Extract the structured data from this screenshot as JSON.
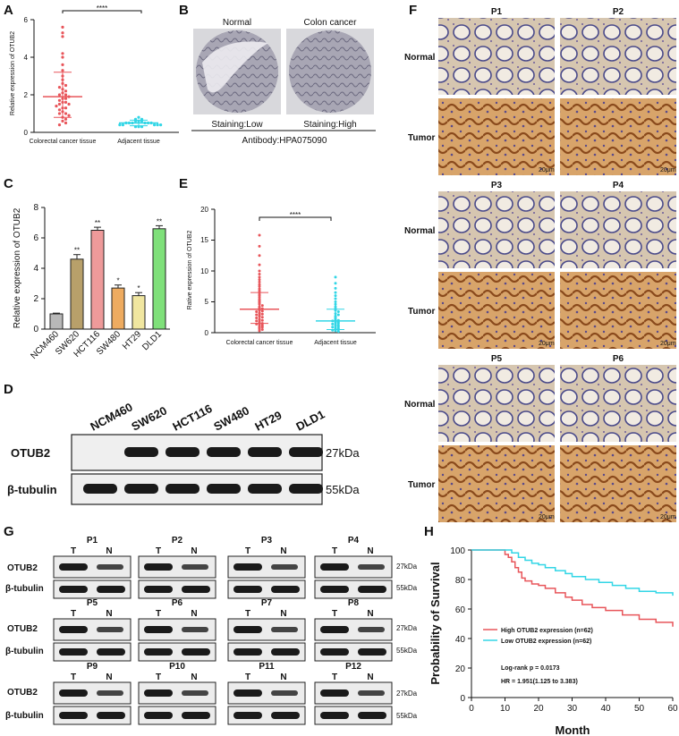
{
  "colors": {
    "red_series": "#e8555a",
    "cyan_series": "#32d6e6",
    "bar_ncm460": "#b8b8b8",
    "bar_sw620": "#b8a06a",
    "bar_hct116": "#ee9a9a",
    "bar_sw480": "#eeab60",
    "bar_ht29": "#f0e6a0",
    "bar_dld1": "#7fe07a",
    "tissue_normal": "#c9b8a3",
    "tissue_tumor": "#b88250"
  },
  "panels": {
    "A": {
      "label": "A",
      "ylabel": "Relative expression of OTUB2",
      "sig": "****",
      "yticks": [
        "0",
        "2",
        "4",
        "6"
      ],
      "xcats": [
        "Colorectal cancer tissue",
        "Adjacent tissue"
      ]
    },
    "B": {
      "label": "B",
      "normal_title": "Normal",
      "cancer_title": "Colon cancer",
      "normal_staining": "Staining:Low",
      "cancer_staining": "Staining:High",
      "antibody": "Antibody:HPA075090"
    },
    "C": {
      "label": "C",
      "ylabel": "Relative expression of OTUB2",
      "yticks": [
        "0",
        "2",
        "4",
        "6",
        "8"
      ],
      "sig_marks": [
        "",
        "**",
        "**",
        "*",
        "*",
        "**"
      ]
    },
    "D": {
      "label": "D",
      "lanes": [
        "NCM460",
        "SW620",
        "HCT116",
        "SW480",
        "HT29",
        "DLD1"
      ],
      "rows": [
        "OTUB2",
        "β-tubulin"
      ],
      "sizes": [
        "27kDa",
        "55kDa"
      ]
    },
    "E": {
      "label": "E",
      "ylabel": "Rative expression of OTUB2",
      "sig": "****",
      "yticks": [
        "0",
        "5",
        "10",
        "15",
        "20"
      ],
      "xcats": [
        "Colorectal cancer tissue",
        "Adjacent tissue"
      ]
    },
    "F": {
      "label": "F",
      "patients": [
        "P1",
        "P2",
        "P3",
        "P4",
        "P5",
        "P6"
      ],
      "row_labels": [
        "Normal",
        "Tumor"
      ],
      "scale": "20μm"
    },
    "G": {
      "label": "G",
      "patients": [
        "P1",
        "P2",
        "P3",
        "P4",
        "P5",
        "P6",
        "P7",
        "P8",
        "P9",
        "P10",
        "P11",
        "P12"
      ],
      "lane_t": "T",
      "lane_n": "N",
      "rows": [
        "OTUB2",
        "β-tubulin"
      ],
      "sizes": [
        "27kDa",
        "55kDa"
      ]
    },
    "H": {
      "label": "H",
      "ylabel": "Probability of Survival",
      "xlabel": "Month",
      "yticks": [
        "0",
        "20",
        "40",
        "60",
        "80",
        "100"
      ],
      "xticks": [
        "0",
        "10",
        "20",
        "30",
        "40",
        "50",
        "60"
      ],
      "legend_high": "High OTUB2 expression (n=62)",
      "legend_low": "Low OTUB2 expression (n=62)",
      "logrank": "Log-rank p = 0.0173",
      "hr": "HR = 1.951(1.125 to 3.383)"
    }
  },
  "chart_data": [
    {
      "panel": "A",
      "type": "scatter",
      "ylabel": "Relative expression of OTUB2",
      "ylim": [
        0,
        6
      ],
      "categories": [
        "Colorectal cancer tissue",
        "Adjacent tissue"
      ],
      "series": [
        {
          "category": "Colorectal cancer tissue",
          "mean": 1.9,
          "sd_upper": 3.2,
          "sd_lower": 0.8,
          "values": [
            5.6,
            5.3,
            5.1,
            4.2,
            4.0,
            3.6,
            3.3,
            3.0,
            2.8,
            2.6,
            2.5,
            2.4,
            2.3,
            2.2,
            2.1,
            2.0,
            2.0,
            1.9,
            1.8,
            1.8,
            1.7,
            1.6,
            1.6,
            1.5,
            1.5,
            1.4,
            1.3,
            1.3,
            1.2,
            1.1,
            1.0,
            1.0,
            0.9,
            0.8,
            0.7,
            0.6,
            0.5,
            0.4
          ]
        },
        {
          "category": "Adjacent tissue",
          "mean": 0.5,
          "sd_upper": 0.65,
          "sd_lower": 0.35,
          "values": [
            0.8,
            0.7,
            0.7,
            0.6,
            0.6,
            0.6,
            0.5,
            0.5,
            0.5,
            0.5,
            0.5,
            0.5,
            0.4,
            0.4,
            0.4,
            0.4,
            0.4,
            0.3,
            0.3,
            0.3
          ]
        }
      ]
    },
    {
      "panel": "C",
      "type": "bar",
      "ylabel": "Relative expression of OTUB2",
      "ylim": [
        0,
        8
      ],
      "categories": [
        "NCM460",
        "SW620",
        "HCT116",
        "SW480",
        "HT29",
        "DLD1"
      ],
      "values": [
        1.0,
        4.6,
        6.5,
        2.7,
        2.2,
        6.6
      ],
      "errors": [
        0.05,
        0.3,
        0.2,
        0.2,
        0.2,
        0.2
      ]
    },
    {
      "panel": "E",
      "type": "scatter",
      "ylabel": "Rative expression of OTUB2",
      "ylim": [
        0,
        20
      ],
      "categories": [
        "Colorectal cancer tissue",
        "Adjacent tissue"
      ],
      "series": [
        {
          "category": "Colorectal cancer tissue",
          "mean": 3.8,
          "sd_upper": 6.5,
          "sd_lower": 1.5,
          "values": [
            15.8,
            14.0,
            12.5,
            11.0,
            10.0,
            9.5,
            9.0,
            8.6,
            8.2,
            7.8,
            7.5,
            7.1,
            6.8,
            6.5,
            6.2,
            6.0,
            5.7,
            5.4,
            5.2,
            5.0,
            4.8,
            4.6,
            4.4,
            4.2,
            4.0,
            3.9,
            3.8,
            3.6,
            3.5,
            3.4,
            3.2,
            3.1,
            3.0,
            2.9,
            2.8,
            2.6,
            2.5,
            2.4,
            2.2,
            2.1,
            2.0,
            1.9,
            1.8,
            1.6,
            1.5,
            1.4,
            1.3,
            1.2,
            1.0,
            0.9,
            0.8,
            0.6,
            0.5,
            0.3
          ]
        },
        {
          "category": "Adjacent tissue",
          "mean": 1.9,
          "sd_upper": 3.8,
          "sd_lower": 0.5,
          "values": [
            9.0,
            8.0,
            7.2,
            6.5,
            6.0,
            5.5,
            5.0,
            4.6,
            4.2,
            3.9,
            3.6,
            3.4,
            3.1,
            2.9,
            2.7,
            2.5,
            2.3,
            2.1,
            2.0,
            1.9,
            1.8,
            1.7,
            1.6,
            1.5,
            1.4,
            1.3,
            1.2,
            1.1,
            1.0,
            0.9,
            0.8,
            0.7,
            0.6,
            0.5,
            0.4,
            0.3,
            0.2
          ]
        }
      ]
    },
    {
      "panel": "H",
      "type": "line",
      "xlabel": "Month",
      "ylabel": "Probability of Survival",
      "xlim": [
        0,
        60
      ],
      "ylim": [
        0,
        100
      ],
      "series": [
        {
          "name": "High OTUB2 expression (n=62)",
          "x": [
            0,
            9,
            10,
            11,
            12,
            13,
            14,
            15,
            16,
            18,
            20,
            22,
            25,
            28,
            30,
            33,
            36,
            40,
            45,
            50,
            55,
            60
          ],
          "y": [
            100,
            100,
            97,
            95,
            92,
            88,
            85,
            81,
            79,
            77,
            76,
            74,
            71,
            68,
            66,
            63,
            61,
            59,
            56,
            53,
            51,
            48
          ]
        },
        {
          "name": "Low OTUB2 expression (n=62)",
          "x": [
            0,
            10,
            12,
            14,
            16,
            18,
            20,
            22,
            25,
            28,
            30,
            34,
            38,
            42,
            46,
            50,
            55,
            60
          ],
          "y": [
            100,
            100,
            98,
            95,
            93,
            91,
            90,
            88,
            86,
            84,
            82,
            80,
            78,
            76,
            74,
            72,
            71,
            69
          ]
        }
      ],
      "annotations": [
        "Log-rank p = 0.0173",
        "HR = 1.951(1.125 to 3.383)"
      ]
    }
  ]
}
